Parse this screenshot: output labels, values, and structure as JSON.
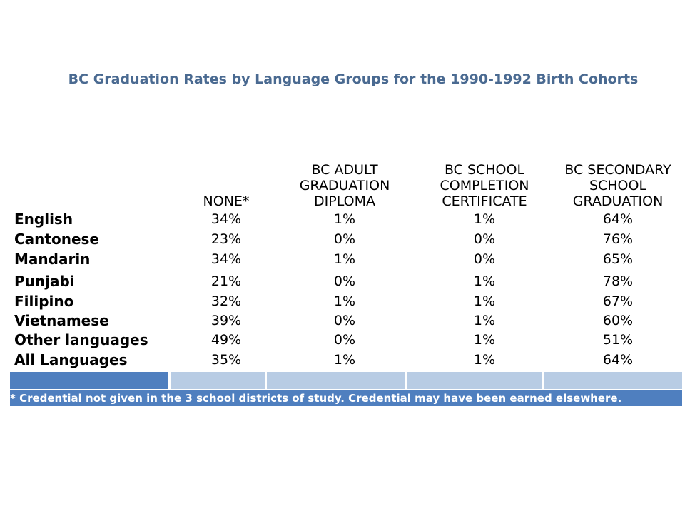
{
  "chart_data": {
    "type": "table",
    "title": "BC Graduation Rates by Language Groups for the 1990-1992 Birth Cohorts",
    "columns": [
      "NONE*",
      "BC ADULT GRADUATION DIPLOMA",
      "BC SCHOOL COMPLETION CERTIFICATE",
      "BC SECONDARY SCHOOL GRADUATION"
    ],
    "rows": [
      {
        "language": "English",
        "values": [
          "34%",
          "1%",
          "1%",
          "64%"
        ]
      },
      {
        "language": "Cantonese",
        "values": [
          "23%",
          "0%",
          "0%",
          "76%"
        ]
      },
      {
        "language": "Mandarin",
        "values": [
          "34%",
          "1%",
          "0%",
          "65%"
        ]
      },
      {
        "language": "Punjabi",
        "values": [
          "21%",
          "0%",
          "1%",
          "78%"
        ]
      },
      {
        "language": "Filipino",
        "values": [
          "32%",
          "1%",
          "1%",
          "67%"
        ]
      },
      {
        "language": "Vietnamese",
        "values": [
          "39%",
          "0%",
          "1%",
          "60%"
        ]
      },
      {
        "language": "Other languages",
        "values": [
          "49%",
          "0%",
          "1%",
          "51%"
        ]
      },
      {
        "language": "All Languages",
        "values": [
          "35%",
          "1%",
          "1%",
          "64%"
        ]
      }
    ],
    "footnote": "* Credential not given in the 3 school districts of study. Credential may have been earned elsewhere."
  },
  "colors": {
    "title": "#4a6a91",
    "band_dark": "#4f7fbf",
    "band_light": "#b8cce4",
    "footer": "#4f7fbf"
  }
}
